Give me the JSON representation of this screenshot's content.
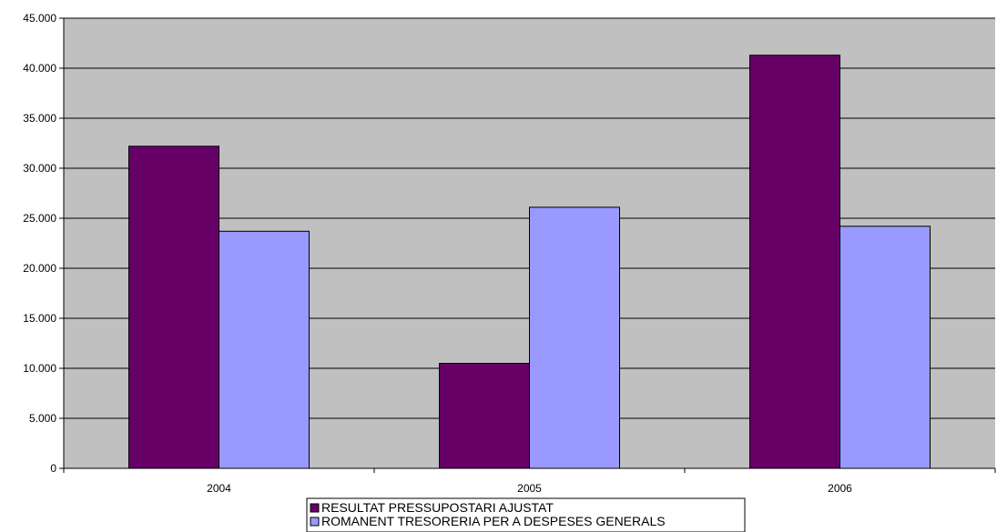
{
  "chart_data": {
    "type": "bar",
    "title": "",
    "xlabel": "",
    "ylabel": "",
    "categories": [
      "2004",
      "2005",
      "2006"
    ],
    "series": [
      {
        "name": "RESULTAT PRESSUPOSTARI AJUSTAT",
        "color": "#660066",
        "values": [
          32200,
          10500,
          41300
        ]
      },
      {
        "name": "ROMANENT TRESORERIA PER A DESPESES GENERALS",
        "color": "#9999ff",
        "values": [
          23700,
          26100,
          24200
        ]
      }
    ],
    "ylim": [
      0,
      45000
    ],
    "yticks": [
      0,
      5000,
      10000,
      15000,
      20000,
      25000,
      30000,
      35000,
      40000,
      45000
    ],
    "ytick_labels": [
      "0",
      "5.000",
      "10.000",
      "15.000",
      "20.000",
      "25.000",
      "30.000",
      "35.000",
      "40.000",
      "45.000"
    ],
    "grid": true,
    "plot_background": "#c0c0c0",
    "legend_position": "bottom"
  }
}
